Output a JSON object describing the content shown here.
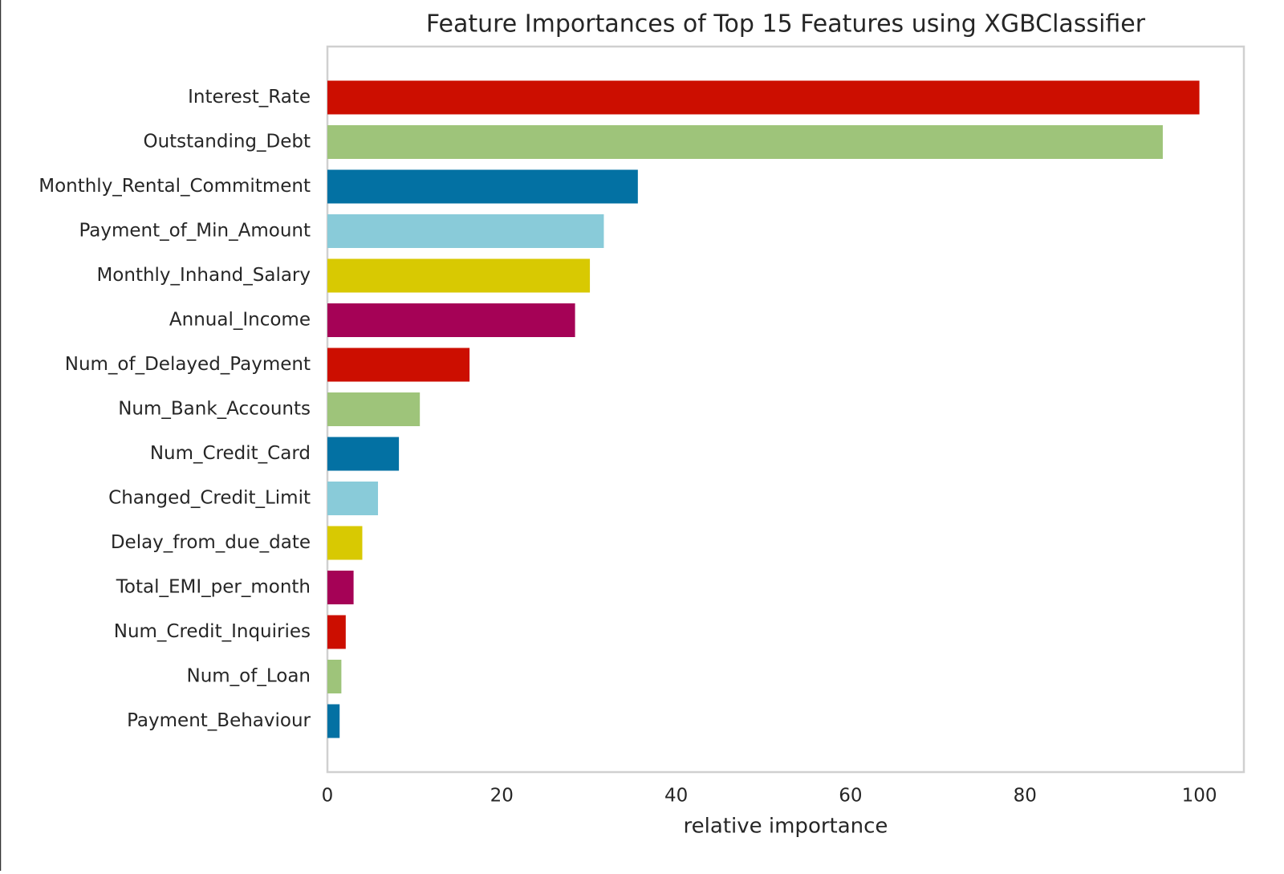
{
  "chart_data": {
    "type": "barh",
    "title": "Feature Importances of Top 15 Features using XGBClassifier",
    "x_label": "relative importance",
    "categories": [
      "Interest_Rate",
      "Outstanding_Debt",
      "Monthly_Rental_Commitment",
      "Payment_of_Min_Amount",
      "Monthly_Inhand_Salary",
      "Annual_Income",
      "Num_of_Delayed_Payment",
      "Num_Bank_Accounts",
      "Num_Credit_Card",
      "Changed_Credit_Limit",
      "Delay_from_due_date",
      "Total_EMI_per_month",
      "Num_Credit_Inquiries",
      "Num_of_Loan",
      "Payment_Behaviour"
    ],
    "values": [
      100,
      95.8,
      35.6,
      31.7,
      30.1,
      28.4,
      16.3,
      10.6,
      8.2,
      5.8,
      4.0,
      3.0,
      2.1,
      1.6,
      1.4
    ],
    "colors": [
      "#cc0e00",
      "#9ec47a",
      "#0371a3",
      "#89cbd9",
      "#d8c902",
      "#a50256",
      "#cc0e00",
      "#9ec47a",
      "#0371a3",
      "#89cbd9",
      "#d8c902",
      "#a50256",
      "#cc0e00",
      "#9ec47a",
      "#0371a3"
    ],
    "xlim": [
      0,
      105.1
    ],
    "xticks": [
      0,
      20,
      40,
      60,
      80,
      100
    ],
    "grid": false
  }
}
